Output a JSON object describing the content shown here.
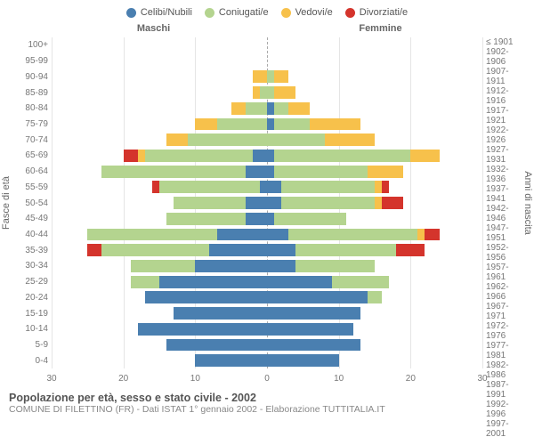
{
  "type": "population-pyramid",
  "legend": [
    {
      "label": "Celibi/Nubili",
      "color": "#4a7fb0"
    },
    {
      "label": "Coniugati/e",
      "color": "#b4d48f"
    },
    {
      "label": "Vedovi/e",
      "color": "#f7c14b"
    },
    {
      "label": "Divorziati/e",
      "color": "#d4342c"
    }
  ],
  "header_male": "Maschi",
  "header_female": "Femmine",
  "ylabel_left": "Fasce di età",
  "ylabel_right": "Anni di nascita",
  "x_max": 30,
  "x_ticks": [
    30,
    20,
    10,
    0,
    10,
    20,
    30
  ],
  "age_groups": [
    "100+",
    "95-99",
    "90-94",
    "85-89",
    "80-84",
    "75-79",
    "70-74",
    "65-69",
    "60-64",
    "55-59",
    "50-54",
    "45-49",
    "40-44",
    "35-39",
    "30-34",
    "25-29",
    "20-24",
    "15-19",
    "10-14",
    "5-9",
    "0-4"
  ],
  "birth_years": [
    "≤ 1901",
    "1902-1906",
    "1907-1911",
    "1912-1916",
    "1917-1921",
    "1922-1926",
    "1927-1931",
    "1932-1936",
    "1937-1941",
    "1942-1946",
    "1947-1951",
    "1952-1956",
    "1957-1961",
    "1962-1966",
    "1967-1971",
    "1972-1976",
    "1977-1981",
    "1982-1986",
    "1987-1991",
    "1992-1996",
    "1997-2001"
  ],
  "data": [
    {
      "m": [
        0,
        0,
        0,
        0
      ],
      "f": [
        0,
        0,
        0,
        0
      ]
    },
    {
      "m": [
        0,
        0,
        0,
        0
      ],
      "f": [
        0,
        0,
        0,
        0
      ]
    },
    {
      "m": [
        0,
        0,
        2,
        0
      ],
      "f": [
        0,
        1,
        2,
        0
      ]
    },
    {
      "m": [
        0,
        1,
        1,
        0
      ],
      "f": [
        0,
        1,
        3,
        0
      ]
    },
    {
      "m": [
        0,
        3,
        2,
        0
      ],
      "f": [
        1,
        2,
        3,
        0
      ]
    },
    {
      "m": [
        0,
        7,
        3,
        0
      ],
      "f": [
        1,
        5,
        7,
        0
      ]
    },
    {
      "m": [
        0,
        11,
        3,
        0
      ],
      "f": [
        0,
        8,
        7,
        0
      ]
    },
    {
      "m": [
        2,
        15,
        1,
        2
      ],
      "f": [
        1,
        19,
        4,
        0
      ]
    },
    {
      "m": [
        3,
        20,
        0,
        0
      ],
      "f": [
        1,
        13,
        5,
        0
      ]
    },
    {
      "m": [
        1,
        14,
        0,
        1
      ],
      "f": [
        2,
        13,
        1,
        1
      ]
    },
    {
      "m": [
        3,
        10,
        0,
        0
      ],
      "f": [
        2,
        13,
        1,
        3
      ]
    },
    {
      "m": [
        3,
        11,
        0,
        0
      ],
      "f": [
        1,
        10,
        0,
        0
      ]
    },
    {
      "m": [
        7,
        18,
        0,
        0
      ],
      "f": [
        3,
        18,
        1,
        2
      ]
    },
    {
      "m": [
        8,
        15,
        0,
        2
      ],
      "f": [
        4,
        14,
        0,
        4
      ]
    },
    {
      "m": [
        10,
        9,
        0,
        0
      ],
      "f": [
        4,
        11,
        0,
        0
      ]
    },
    {
      "m": [
        15,
        4,
        0,
        0
      ],
      "f": [
        9,
        8,
        0,
        0
      ]
    },
    {
      "m": [
        17,
        0,
        0,
        0
      ],
      "f": [
        14,
        2,
        0,
        0
      ]
    },
    {
      "m": [
        13,
        0,
        0,
        0
      ],
      "f": [
        13,
        0,
        0,
        0
      ]
    },
    {
      "m": [
        18,
        0,
        0,
        0
      ],
      "f": [
        12,
        0,
        0,
        0
      ]
    },
    {
      "m": [
        14,
        0,
        0,
        0
      ],
      "f": [
        13,
        0,
        0,
        0
      ]
    },
    {
      "m": [
        10,
        0,
        0,
        0
      ],
      "f": [
        10,
        0,
        0,
        0
      ]
    }
  ],
  "footer_title": "Popolazione per età, sesso e stato civile - 2002",
  "footer_sub": "COMUNE DI FILETTINO (FR) - Dati ISTAT 1° gennaio 2002 - Elaborazione TUTTITALIA.IT",
  "grid_color": "#e5e5e5",
  "background_color": "#ffffff"
}
